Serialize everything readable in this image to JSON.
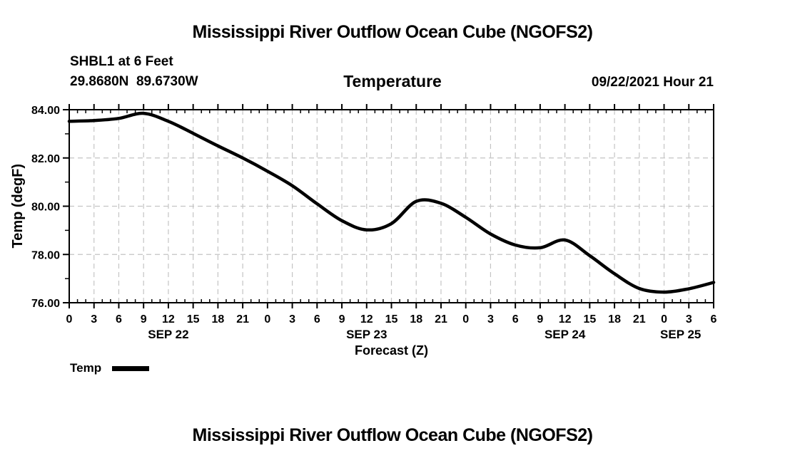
{
  "header": {
    "top_title": "Mississippi River Outflow Ocean Cube (NGOFS2)",
    "station_id": "SHBL1 at 6 Feet",
    "station_coords": "29.8680N  89.6730W",
    "plot_type": "Temperature",
    "forecast_datetime": "09/22/2021 Hour 21"
  },
  "footer": {
    "bottom_title": "Mississippi River Outflow Ocean Cube (NGOFS2)"
  },
  "legend": {
    "label": "Temp",
    "swatch_color": "#000000"
  },
  "colors": {
    "line": "#000000",
    "frame": "#000000",
    "grid": "#c4c4c4",
    "background": "#ffffff",
    "text": "#000000"
  },
  "chart_data": {
    "type": "line",
    "title": "Temperature",
    "xlabel": "Forecast (Z)",
    "ylabel": "Temp (degF)",
    "xlim": [
      0,
      78
    ],
    "ylim": [
      76,
      84
    ],
    "grid": true,
    "x_tick_hours": [
      0,
      3,
      6,
      9,
      12,
      15,
      18,
      21,
      24,
      27,
      30,
      33,
      36,
      39,
      42,
      45,
      48,
      51,
      54,
      57,
      60,
      63,
      66,
      69,
      72,
      75,
      78
    ],
    "x_tick_labels": [
      "0",
      "3",
      "6",
      "9",
      "12",
      "15",
      "18",
      "21",
      "0",
      "3",
      "6",
      "9",
      "12",
      "15",
      "18",
      "21",
      "0",
      "3",
      "6",
      "9",
      "12",
      "15",
      "18",
      "21",
      "0",
      "3",
      "6"
    ],
    "x_minor_step_hours": 1,
    "y_ticks": [
      76,
      78,
      80,
      82,
      84
    ],
    "y_tick_labels": [
      "76.00",
      "78.00",
      "80.00",
      "82.00",
      "84.00"
    ],
    "y_minor_ticks": [
      77,
      79,
      81,
      83
    ],
    "date_labels": [
      {
        "label": "SEP 22",
        "hour": 12
      },
      {
        "label": "SEP 23",
        "hour": 36
      },
      {
        "label": "SEP 24",
        "hour": 60
      },
      {
        "label": "SEP 25",
        "hour": 74
      }
    ],
    "series": [
      {
        "name": "Temp",
        "color": "#000000",
        "x": [
          0,
          3,
          6,
          9,
          12,
          15,
          18,
          21,
          24,
          27,
          30,
          33,
          36,
          39,
          42,
          45,
          48,
          51,
          54,
          57,
          60,
          63,
          66,
          69,
          72,
          75,
          78
        ],
        "values": [
          83.52,
          83.55,
          83.64,
          83.85,
          83.52,
          83.02,
          82.5,
          82.0,
          81.45,
          80.85,
          80.1,
          79.4,
          79.02,
          79.28,
          80.2,
          80.12,
          79.54,
          78.85,
          78.39,
          78.28,
          78.6,
          77.95,
          77.2,
          76.59,
          76.44,
          76.58,
          76.84
        ]
      }
    ],
    "legend_position": "bottom-left"
  }
}
